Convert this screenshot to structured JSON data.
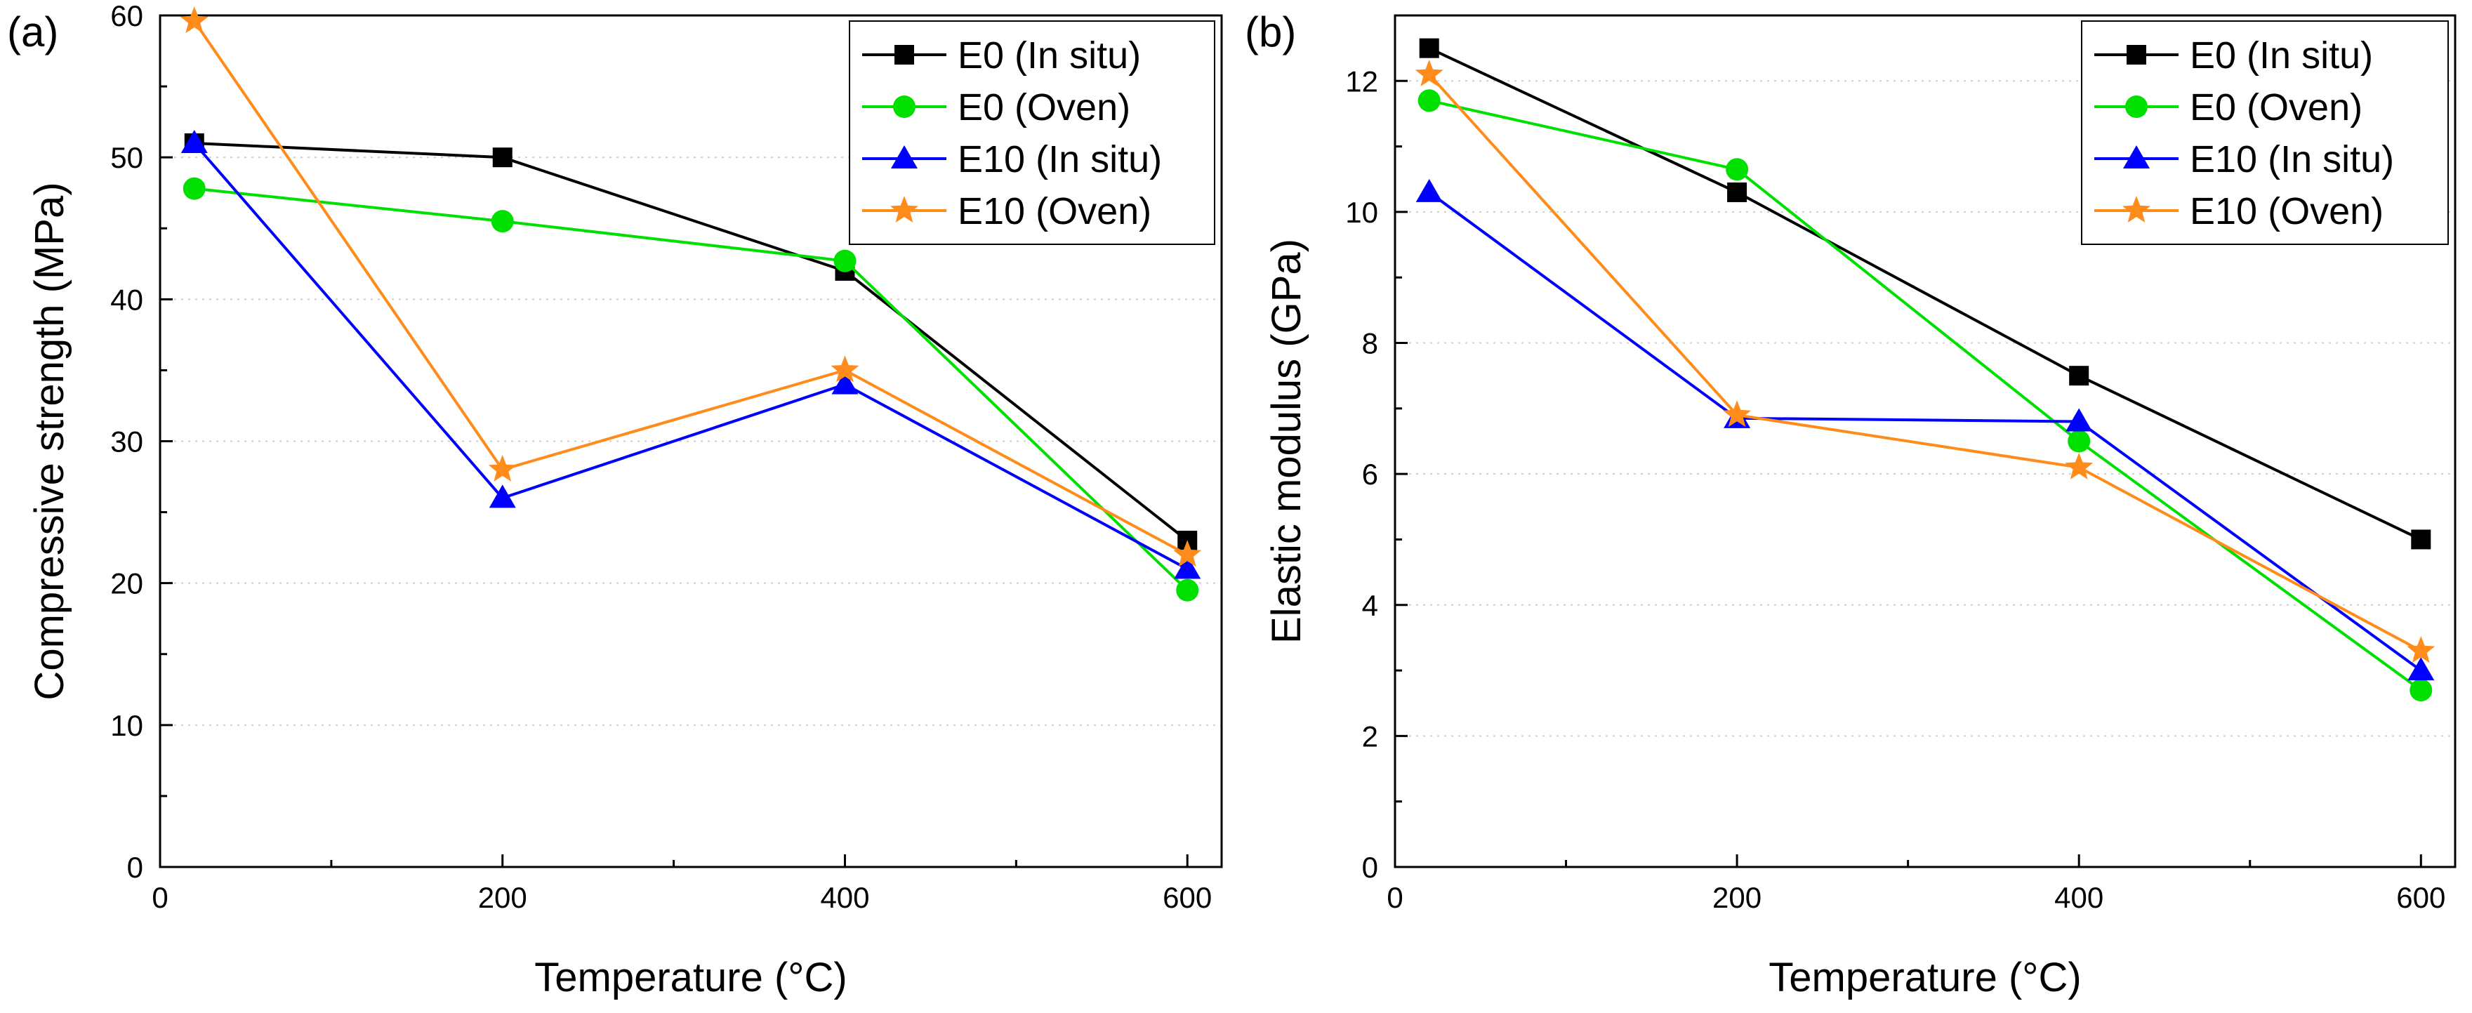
{
  "chart_data": [
    {
      "type": "line",
      "panel_label": "(a)",
      "title": "",
      "xlabel": "Temperature (°C)",
      "ylabel": "Compressive strength (MPa)",
      "xlim": [
        0,
        620
      ],
      "ylim": [
        0,
        60
      ],
      "xticks": [
        0,
        200,
        400,
        600
      ],
      "xtick_labels": [
        "0",
        "200",
        "400",
        "600"
      ],
      "yticks": [
        0,
        10,
        20,
        30,
        40,
        50,
        60
      ],
      "ytick_labels": [
        "0",
        "10",
        "20",
        "30",
        "40",
        "50",
        "60"
      ],
      "grid": "horizontal dotted",
      "legend_position": "top-right",
      "x": [
        20,
        200,
        400,
        600
      ],
      "series": [
        {
          "name": "E0 (In situ)",
          "color": "#000000",
          "marker": "square",
          "values": [
            51,
            50,
            42,
            23
          ]
        },
        {
          "name": "E0 (Oven)",
          "color": "#00e000",
          "marker": "circle",
          "values": [
            47.8,
            45.5,
            42.7,
            19.5
          ]
        },
        {
          "name": "E10 (In situ)",
          "color": "#0000ff",
          "marker": "triangle",
          "values": [
            51,
            26,
            34,
            21
          ]
        },
        {
          "name": "E10 (Oven)",
          "color": "#ff8c1a",
          "marker": "star",
          "values": [
            59.6,
            28,
            35,
            22
          ]
        }
      ]
    },
    {
      "type": "line",
      "panel_label": "(b)",
      "title": "",
      "xlabel": "Temperature (°C)",
      "ylabel": "Elastic modulus (GPa)",
      "xlim": [
        0,
        620
      ],
      "ylim": [
        0,
        13
      ],
      "xticks": [
        0,
        200,
        400,
        600
      ],
      "xtick_labels": [
        "0",
        "200",
        "400",
        "600"
      ],
      "yticks": [
        0,
        2,
        4,
        6,
        8,
        10,
        12
      ],
      "ytick_labels": [
        "0",
        "2",
        "4",
        "6",
        "8",
        "10",
        "12"
      ],
      "grid": "horizontal dotted",
      "legend_position": "top-right",
      "x": [
        20,
        200,
        400,
        600
      ],
      "series": [
        {
          "name": "E0 (In situ)",
          "color": "#000000",
          "marker": "square",
          "values": [
            12.5,
            10.3,
            7.5,
            5.0
          ]
        },
        {
          "name": "E0 (Oven)",
          "color": "#00e000",
          "marker": "circle",
          "values": [
            11.7,
            10.65,
            6.5,
            2.7
          ]
        },
        {
          "name": "E10 (In situ)",
          "color": "#0000ff",
          "marker": "triangle",
          "values": [
            10.3,
            6.85,
            6.8,
            3.0
          ]
        },
        {
          "name": "E10 (Oven)",
          "color": "#ff8c1a",
          "marker": "star",
          "values": [
            12.1,
            6.9,
            6.1,
            3.3
          ]
        }
      ]
    }
  ]
}
